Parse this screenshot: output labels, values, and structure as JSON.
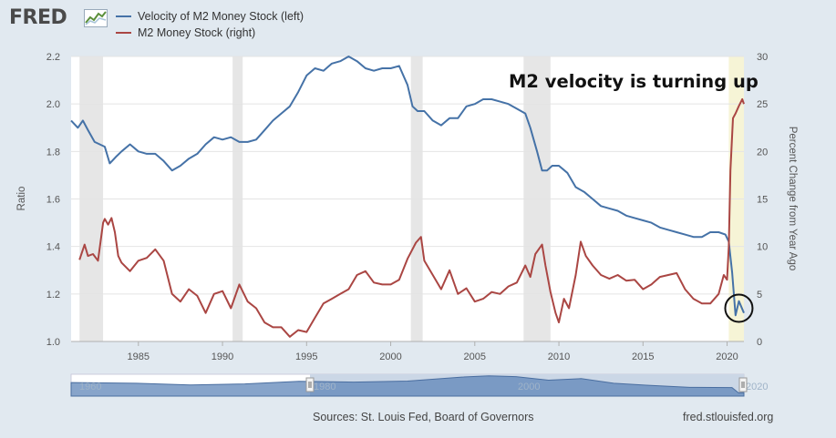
{
  "header": {
    "logo_text": "FRED",
    "logo_icon": "fred-chart-icon"
  },
  "legend": [
    {
      "label": "Velocity of M2 Money Stock (left)",
      "color": "#4572a7"
    },
    {
      "label": "M2 Money Stock (right)",
      "color": "#aa4643"
    }
  ],
  "annotation": "M2 velocity is turning up",
  "footer": {
    "source": "Sources: St. Louis Fed, Board of Governors",
    "url": "fred.stlouisfed.org"
  },
  "navigator": {
    "labels": [
      "1960",
      "1980",
      "2000",
      "2020"
    ],
    "handle_icon": "range-handle-icon"
  },
  "chart_data": {
    "type": "line",
    "title": "",
    "xlabel": "",
    "ylabel_left": "Ratio",
    "ylabel_right": "Percent Change from Year Ago",
    "xlim": [
      1981.0,
      2021.0
    ],
    "ylim_left": [
      1.0,
      2.2
    ],
    "ylim_right": [
      0,
      30
    ],
    "x_ticks": [
      1985,
      1990,
      1995,
      2000,
      2005,
      2010,
      2015,
      2020
    ],
    "y_ticks_left": [
      "1.0",
      "1.2",
      "1.4",
      "1.6",
      "1.8",
      "2.0",
      "2.2"
    ],
    "y_ticks_right": [
      "0",
      "5",
      "10",
      "15",
      "20",
      "25",
      "30"
    ],
    "recessions": [
      [
        1981.5,
        1982.9
      ],
      [
        1990.6,
        1991.2
      ],
      [
        2001.2,
        2001.9
      ],
      [
        2007.9,
        2009.5
      ]
    ],
    "highlight_period": [
      2020.1,
      2021.0
    ],
    "highlight_color": "#f6f4d6",
    "recession_color": "#e6e6e6",
    "callout_circle": {
      "x": 2020.7,
      "y_left": 1.14
    },
    "series": [
      {
        "name": "Velocity of M2 Money Stock (left)",
        "axis": "left",
        "color": "#4572a7",
        "x": [
          1981.0,
          1981.4,
          1981.7,
          1982.0,
          1982.4,
          1982.7,
          1983.0,
          1983.3,
          1983.7,
          1984.0,
          1984.5,
          1985.0,
          1985.5,
          1986.0,
          1986.5,
          1987.0,
          1987.5,
          1988.0,
          1988.5,
          1989.0,
          1989.5,
          1990.0,
          1990.5,
          1991.0,
          1991.5,
          1992.0,
          1992.5,
          1993.0,
          1993.5,
          1994.0,
          1994.5,
          1995.0,
          1995.5,
          1996.0,
          1996.5,
          1997.0,
          1997.5,
          1998.0,
          1998.5,
          1999.0,
          1999.5,
          2000.0,
          2000.5,
          2001.0,
          2001.3,
          2001.6,
          2002.0,
          2002.5,
          2003.0,
          2003.5,
          2004.0,
          2004.5,
          2005.0,
          2005.5,
          2006.0,
          2006.5,
          2007.0,
          2007.5,
          2008.0,
          2008.3,
          2008.7,
          2009.0,
          2009.3,
          2009.6,
          2010.0,
          2010.5,
          2011.0,
          2011.5,
          2012.0,
          2012.5,
          2013.0,
          2013.5,
          2014.0,
          2014.5,
          2015.0,
          2015.5,
          2016.0,
          2016.5,
          2017.0,
          2017.5,
          2018.0,
          2018.5,
          2019.0,
          2019.5,
          2019.9,
          2020.1,
          2020.3,
          2020.5,
          2020.7,
          2021.0
        ],
        "values": [
          1.93,
          1.9,
          1.93,
          1.89,
          1.84,
          1.83,
          1.82,
          1.75,
          1.78,
          1.8,
          1.83,
          1.8,
          1.79,
          1.79,
          1.76,
          1.72,
          1.74,
          1.77,
          1.79,
          1.83,
          1.86,
          1.85,
          1.86,
          1.84,
          1.84,
          1.85,
          1.89,
          1.93,
          1.96,
          1.99,
          2.05,
          2.12,
          2.15,
          2.14,
          2.17,
          2.18,
          2.2,
          2.18,
          2.15,
          2.14,
          2.15,
          2.15,
          2.16,
          2.08,
          1.99,
          1.97,
          1.97,
          1.93,
          1.91,
          1.94,
          1.94,
          1.99,
          2.0,
          2.02,
          2.02,
          2.01,
          2.0,
          1.98,
          1.96,
          1.9,
          1.8,
          1.72,
          1.72,
          1.74,
          1.74,
          1.71,
          1.65,
          1.63,
          1.6,
          1.57,
          1.56,
          1.55,
          1.53,
          1.52,
          1.51,
          1.5,
          1.48,
          1.47,
          1.46,
          1.45,
          1.44,
          1.44,
          1.46,
          1.46,
          1.45,
          1.42,
          1.29,
          1.11,
          1.17,
          1.12
        ]
      },
      {
        "name": "M2 Money Stock (right)",
        "axis": "right",
        "color": "#aa4643",
        "x": [
          1981.5,
          1981.8,
          1982.0,
          1982.3,
          1982.6,
          1982.9,
          1983.0,
          1983.2,
          1983.4,
          1983.6,
          1983.8,
          1984.0,
          1984.5,
          1985.0,
          1985.5,
          1986.0,
          1986.5,
          1987.0,
          1987.5,
          1988.0,
          1988.5,
          1989.0,
          1989.5,
          1990.0,
          1990.5,
          1991.0,
          1991.5,
          1992.0,
          1992.5,
          1993.0,
          1993.5,
          1994.0,
          1994.5,
          1995.0,
          1995.5,
          1996.0,
          1996.5,
          1997.0,
          1997.5,
          1998.0,
          1998.5,
          1999.0,
          1999.5,
          2000.0,
          2000.5,
          2001.0,
          2001.5,
          2001.8,
          2002.0,
          2002.5,
          2003.0,
          2003.5,
          2004.0,
          2004.5,
          2005.0,
          2005.5,
          2006.0,
          2006.5,
          2007.0,
          2007.5,
          2008.0,
          2008.3,
          2008.6,
          2009.0,
          2009.2,
          2009.5,
          2009.8,
          2010.0,
          2010.3,
          2010.6,
          2011.0,
          2011.3,
          2011.6,
          2012.0,
          2012.5,
          2013.0,
          2013.5,
          2014.0,
          2014.5,
          2015.0,
          2015.5,
          2016.0,
          2016.5,
          2017.0,
          2017.5,
          2018.0,
          2018.5,
          2019.0,
          2019.5,
          2019.8,
          2020.0,
          2020.1,
          2020.2,
          2020.35,
          2020.5,
          2020.7,
          2020.9,
          2021.0
        ],
        "values": [
          8.6,
          10.2,
          9.0,
          9.2,
          8.5,
          12.5,
          12.9,
          12.3,
          13.0,
          11.5,
          9.0,
          8.3,
          7.4,
          8.5,
          8.8,
          9.7,
          8.5,
          5.0,
          4.2,
          5.5,
          4.8,
          3.0,
          5.0,
          5.3,
          3.5,
          6.0,
          4.2,
          3.5,
          2.0,
          1.5,
          1.5,
          0.5,
          1.2,
          1.0,
          2.5,
          4.0,
          4.5,
          5.0,
          5.5,
          7.0,
          7.4,
          6.2,
          6.0,
          6.0,
          6.5,
          8.7,
          10.4,
          11.0,
          8.5,
          7.0,
          5.5,
          7.5,
          5.0,
          5.6,
          4.2,
          4.5,
          5.2,
          5.0,
          5.8,
          6.2,
          8.0,
          6.8,
          9.2,
          10.2,
          8.0,
          5.2,
          3.0,
          2.0,
          4.5,
          3.5,
          7.0,
          10.5,
          9.0,
          8.0,
          7.0,
          6.6,
          7.0,
          6.4,
          6.5,
          5.5,
          6.0,
          6.8,
          7.0,
          7.2,
          5.5,
          4.5,
          4.0,
          4.0,
          5.0,
          7.0,
          6.5,
          10.0,
          18.0,
          23.5,
          24.0,
          24.8,
          25.5,
          25.0
        ]
      }
    ]
  }
}
